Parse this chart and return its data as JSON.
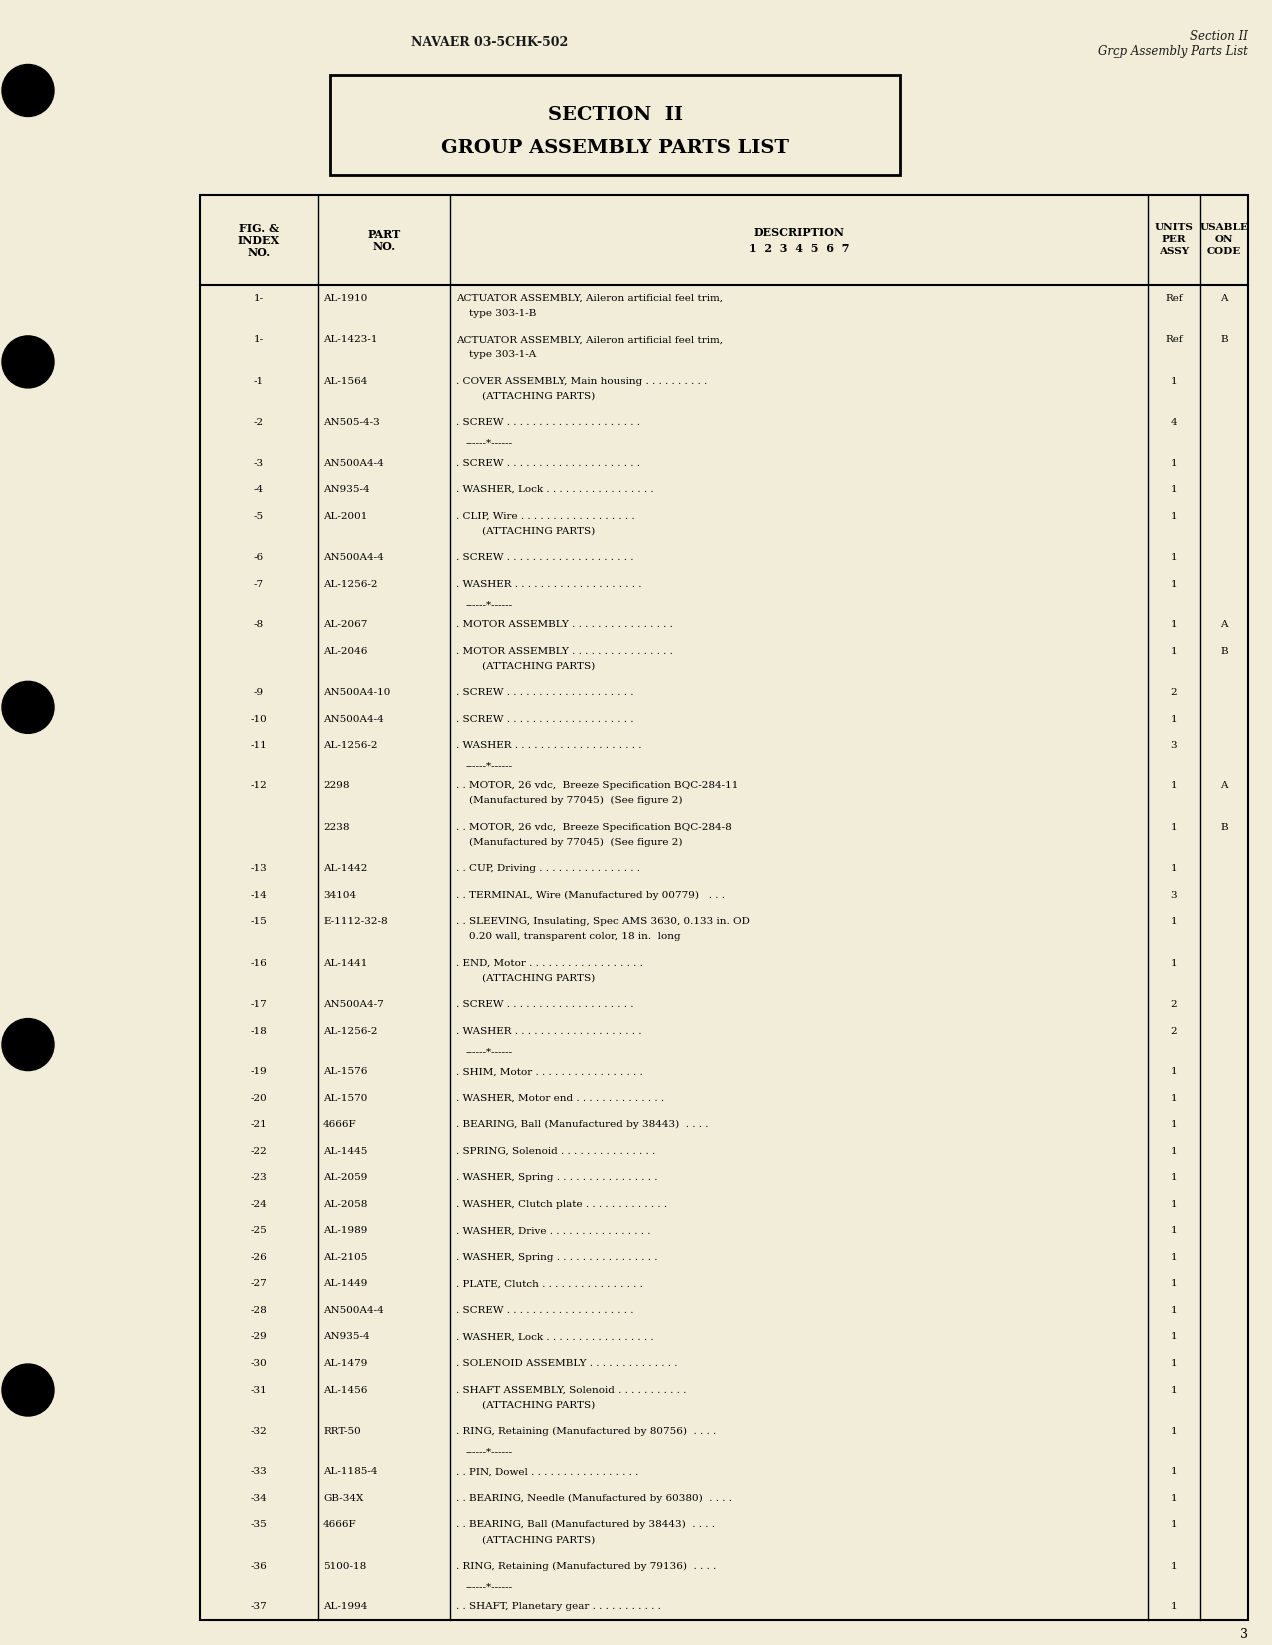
{
  "bg_color": "#f2edd8",
  "page_number": "3",
  "header_left": "NAVAER 03-5CHK-502",
  "header_right_line1": "Section II",
  "header_right_line2": "Grụp Assembly Parts List",
  "section_title_line1": "SECTION  II",
  "section_title_line2": "GROUP ASSEMBLY PARTS LIST",
  "rows": [
    {
      "fig": "1-",
      "part": "AL-1910",
      "desc1": "ACTUATOR ASSEMBLY, Aileron artificial feel trim,",
      "desc2": "    type 303-1-B",
      "units": "Ref",
      "code": "A",
      "attaching": false,
      "separator": false
    },
    {
      "fig": "1-",
      "part": "AL-1423-1",
      "desc1": "ACTUATOR ASSEMBLY, Aileron artificial feel trim,",
      "desc2": "    type 303-1-A",
      "units": "Ref",
      "code": "B",
      "attaching": false,
      "separator": false
    },
    {
      "fig": "-1",
      "part": "AL-1564",
      "desc1": ". COVER ASSEMBLY, Main housing . . . . . . . . . .",
      "desc2": "        (ATTACHING PARTS)",
      "units": "1",
      "code": "",
      "attaching": false,
      "separator": false
    },
    {
      "fig": "-2",
      "part": "AN505-4-3",
      "desc1": ". SCREW . . . . . . . . . . . . . . . . . . . . .",
      "desc2": "",
      "units": "4",
      "code": "",
      "attaching": false,
      "separator": true
    },
    {
      "fig": "-3",
      "part": "AN500A4-4",
      "desc1": ". SCREW . . . . . . . . . . . . . . . . . . . . .",
      "desc2": "",
      "units": "1",
      "code": "",
      "attaching": false,
      "separator": false
    },
    {
      "fig": "-4",
      "part": "AN935-4",
      "desc1": ". WASHER, Lock . . . . . . . . . . . . . . . . .",
      "desc2": "",
      "units": "1",
      "code": "",
      "attaching": false,
      "separator": false
    },
    {
      "fig": "-5",
      "part": "AL-2001",
      "desc1": ". CLIP, Wire . . . . . . . . . . . . . . . . . .",
      "desc2": "        (ATTACHING PARTS)",
      "units": "1",
      "code": "",
      "attaching": false,
      "separator": false
    },
    {
      "fig": "-6",
      "part": "AN500A4-4",
      "desc1": ". SCREW . . . . . . . . . . . . . . . . . . . .",
      "desc2": "",
      "units": "1",
      "code": "",
      "attaching": false,
      "separator": false
    },
    {
      "fig": "-7",
      "part": "AL-1256-2",
      "desc1": ". WASHER . . . . . . . . . . . . . . . . . . . .",
      "desc2": "",
      "units": "1",
      "code": "",
      "attaching": false,
      "separator": true
    },
    {
      "fig": "-8",
      "part": "AL-2067",
      "desc1": ". MOTOR ASSEMBLY . . . . . . . . . . . . . . . .",
      "desc2": "",
      "units": "1",
      "code": "A",
      "attaching": false,
      "separator": false
    },
    {
      "fig": "",
      "part": "AL-2046",
      "desc1": ". MOTOR ASSEMBLY . . . . . . . . . . . . . . . .",
      "desc2": "        (ATTACHING PARTS)",
      "units": "1",
      "code": "B",
      "attaching": false,
      "separator": false
    },
    {
      "fig": "-9",
      "part": "AN500A4-10",
      "desc1": ". SCREW . . . . . . . . . . . . . . . . . . . .",
      "desc2": "",
      "units": "2",
      "code": "",
      "attaching": false,
      "separator": false
    },
    {
      "fig": "-10",
      "part": "AN500A4-4",
      "desc1": ". SCREW . . . . . . . . . . . . . . . . . . . .",
      "desc2": "",
      "units": "1",
      "code": "",
      "attaching": false,
      "separator": false
    },
    {
      "fig": "-11",
      "part": "AL-1256-2",
      "desc1": ". WASHER . . . . . . . . . . . . . . . . . . . .",
      "desc2": "",
      "units": "3",
      "code": "",
      "attaching": false,
      "separator": true
    },
    {
      "fig": "-12",
      "part": "2298",
      "desc1": ". . MOTOR, 26 vdc,  Breeze Specification BQC-284-11",
      "desc2": "    (Manufactured by 77045)  (See figure 2)",
      "units": "1",
      "code": "A",
      "attaching": false,
      "separator": false
    },
    {
      "fig": "",
      "part": "2238",
      "desc1": ". . MOTOR, 26 vdc,  Breeze Specification BQC-284-8",
      "desc2": "    (Manufactured by 77045)  (See figure 2)",
      "units": "1",
      "code": "B",
      "attaching": false,
      "separator": false
    },
    {
      "fig": "-13",
      "part": "AL-1442",
      "desc1": ". . CUP, Driving . . . . . . . . . . . . . . . .",
      "desc2": "",
      "units": "1",
      "code": "",
      "attaching": false,
      "separator": false
    },
    {
      "fig": "-14",
      "part": "34104",
      "desc1": ". . TERMINAL, Wire (Manufactured by 00779)   . . .",
      "desc2": "",
      "units": "3",
      "code": "",
      "attaching": false,
      "separator": false
    },
    {
      "fig": "-15",
      "part": "E-1112-32-8",
      "desc1": ". . SLEEVING, Insulating, Spec AMS 3630, 0.133 in. OD",
      "desc2": "    0.20 wall, transparent color, 18 in.  long",
      "units": "1",
      "code": "",
      "attaching": false,
      "separator": false
    },
    {
      "fig": "-16",
      "part": "AL-1441",
      "desc1": ". END, Motor . . . . . . . . . . . . . . . . . .",
      "desc2": "        (ATTACHING PARTS)",
      "units": "1",
      "code": "",
      "attaching": false,
      "separator": false
    },
    {
      "fig": "-17",
      "part": "AN500A4-7",
      "desc1": ". SCREW . . . . . . . . . . . . . . . . . . . .",
      "desc2": "",
      "units": "2",
      "code": "",
      "attaching": false,
      "separator": false
    },
    {
      "fig": "-18",
      "part": "AL-1256-2",
      "desc1": ". WASHER . . . . . . . . . . . . . . . . . . . .",
      "desc2": "",
      "units": "2",
      "code": "",
      "attaching": false,
      "separator": true
    },
    {
      "fig": "-19",
      "part": "AL-1576",
      "desc1": ". SHIM, Motor . . . . . . . . . . . . . . . . .",
      "desc2": "",
      "units": "1",
      "code": "",
      "attaching": false,
      "separator": false
    },
    {
      "fig": "-20",
      "part": "AL-1570",
      "desc1": ". WASHER, Motor end . . . . . . . . . . . . . .",
      "desc2": "",
      "units": "1",
      "code": "",
      "attaching": false,
      "separator": false
    },
    {
      "fig": "-21",
      "part": "4666F",
      "desc1": ". BEARING, Ball (Manufactured by 38443)  . . . .",
      "desc2": "",
      "units": "1",
      "code": "",
      "attaching": false,
      "separator": false
    },
    {
      "fig": "-22",
      "part": "AL-1445",
      "desc1": ". SPRING, Solenoid . . . . . . . . . . . . . . .",
      "desc2": "",
      "units": "1",
      "code": "",
      "attaching": false,
      "separator": false
    },
    {
      "fig": "-23",
      "part": "AL-2059",
      "desc1": ". WASHER, Spring . . . . . . . . . . . . . . . .",
      "desc2": "",
      "units": "1",
      "code": "",
      "attaching": false,
      "separator": false
    },
    {
      "fig": "-24",
      "part": "AL-2058",
      "desc1": ". WASHER, Clutch plate . . . . . . . . . . . . .",
      "desc2": "",
      "units": "1",
      "code": "",
      "attaching": false,
      "separator": false
    },
    {
      "fig": "-25",
      "part": "AL-1989",
      "desc1": ". WASHER, Drive . . . . . . . . . . . . . . . .",
      "desc2": "",
      "units": "1",
      "code": "",
      "attaching": false,
      "separator": false
    },
    {
      "fig": "-26",
      "part": "AL-2105",
      "desc1": ". WASHER, Spring . . . . . . . . . . . . . . . .",
      "desc2": "",
      "units": "1",
      "code": "",
      "attaching": false,
      "separator": false
    },
    {
      "fig": "-27",
      "part": "AL-1449",
      "desc1": ". PLATE, Clutch . . . . . . . . . . . . . . . .",
      "desc2": "",
      "units": "1",
      "code": "",
      "attaching": false,
      "separator": false
    },
    {
      "fig": "-28",
      "part": "AN500A4-4",
      "desc1": ". SCREW . . . . . . . . . . . . . . . . . . . .",
      "desc2": "",
      "units": "1",
      "code": "",
      "attaching": false,
      "separator": false
    },
    {
      "fig": "-29",
      "part": "AN935-4",
      "desc1": ". WASHER, Lock . . . . . . . . . . . . . . . . .",
      "desc2": "",
      "units": "1",
      "code": "",
      "attaching": false,
      "separator": false
    },
    {
      "fig": "-30",
      "part": "AL-1479",
      "desc1": ". SOLENOID ASSEMBLY . . . . . . . . . . . . . .",
      "desc2": "",
      "units": "1",
      "code": "",
      "attaching": false,
      "separator": false
    },
    {
      "fig": "-31",
      "part": "AL-1456",
      "desc1": ". SHAFT ASSEMBLY, Solenoid . . . . . . . . . . .",
      "desc2": "        (ATTACHING PARTS)",
      "units": "1",
      "code": "",
      "attaching": false,
      "separator": false
    },
    {
      "fig": "-32",
      "part": "RRT-50",
      "desc1": ". RING, Retaining (Manufactured by 80756)  . . . .",
      "desc2": "",
      "units": "1",
      "code": "",
      "attaching": false,
      "separator": true
    },
    {
      "fig": "-33",
      "part": "AL-1185-4",
      "desc1": ". . PIN, Dowel . . . . . . . . . . . . . . . . .",
      "desc2": "",
      "units": "1",
      "code": "",
      "attaching": false,
      "separator": false
    },
    {
      "fig": "-34",
      "part": "GB-34X",
      "desc1": ". . BEARING, Needle (Manufactured by 60380)  . . . .",
      "desc2": "",
      "units": "1",
      "code": "",
      "attaching": false,
      "separator": false
    },
    {
      "fig": "-35",
      "part": "4666F",
      "desc1": ". . BEARING, Ball (Manufactured by 38443)  . . . .",
      "desc2": "        (ATTACHING PARTS)",
      "units": "1",
      "code": "",
      "attaching": false,
      "separator": false
    },
    {
      "fig": "-36",
      "part": "5100-18",
      "desc1": ". RING, Retaining (Manufactured by 79136)  . . . .",
      "desc2": "",
      "units": "1",
      "code": "",
      "attaching": false,
      "separator": true
    },
    {
      "fig": "-37",
      "part": "AL-1994",
      "desc1": ". . SHAFT, Planetary gear . . . . . . . . . . .",
      "desc2": "",
      "units": "1",
      "code": "",
      "attaching": false,
      "separator": false
    }
  ]
}
